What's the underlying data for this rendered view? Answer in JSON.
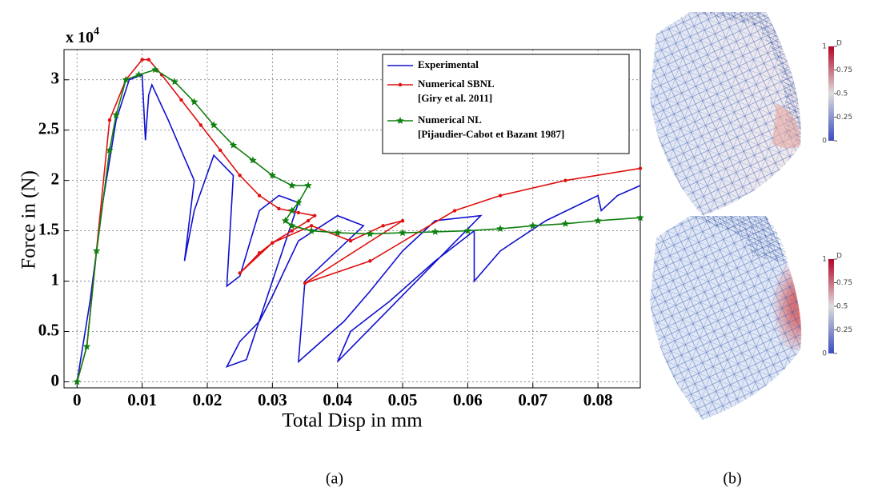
{
  "chart_data": {
    "type": "line",
    "y_scale_label": {
      "base": "x 10",
      "exponent": "4"
    },
    "x_label": "Total Disp in mm",
    "y_label": "Force in (N)",
    "xlim": [
      -0.002,
      0.0865
    ],
    "ylim": [
      -0.06,
      3.3
    ],
    "xticks": [
      0,
      0.01,
      0.02,
      0.03,
      0.04,
      0.05,
      0.06,
      0.07,
      0.08
    ],
    "yticks": [
      0,
      0.5,
      1,
      1.5,
      2,
      2.5,
      3
    ],
    "grid": true,
    "legend": "upper right",
    "series": [
      {
        "name": "Experimental",
        "color": "#1010d0",
        "marker": "none",
        "x": [
          0,
          0.002,
          0.004,
          0.006,
          0.008,
          0.01,
          0.0105,
          0.011,
          0.0115,
          0.014,
          0.016,
          0.018,
          0.0165,
          0.018,
          0.021,
          0.024,
          0.023,
          0.025,
          0.028,
          0.031,
          0.034,
          0.026,
          0.023,
          0.025,
          0.028,
          0.03,
          0.034,
          0.04,
          0.044,
          0.035,
          0.034,
          0.041,
          0.045,
          0.05,
          0.055,
          0.062,
          0.04,
          0.042,
          0.048,
          0.055,
          0.061,
          0.061,
          0.065,
          0.072,
          0.08,
          0.0805,
          0.083,
          0.0865
        ],
        "values": [
          0,
          0.8,
          1.8,
          2.6,
          3.0,
          3.05,
          2.4,
          2.85,
          2.95,
          2.6,
          2.3,
          2.0,
          1.2,
          1.7,
          2.25,
          2.05,
          0.95,
          1.05,
          1.7,
          1.85,
          1.78,
          0.22,
          0.15,
          0.4,
          0.6,
          0.85,
          1.4,
          1.65,
          1.55,
          1.0,
          0.2,
          0.6,
          0.9,
          1.3,
          1.6,
          1.65,
          0.2,
          0.5,
          0.8,
          1.2,
          1.5,
          1.0,
          1.3,
          1.6,
          1.85,
          1.7,
          1.85,
          1.95
        ]
      },
      {
        "name": "Numerical SBNL",
        "reference": "[Giry et al. 2011]",
        "color": "#e01010",
        "marker": "dot",
        "x": [
          0,
          0.0015,
          0.005,
          0.0075,
          0.01,
          0.011,
          0.013,
          0.016,
          0.019,
          0.022,
          0.025,
          0.028,
          0.031,
          0.034,
          0.0365,
          0.0355,
          0.033,
          0.03,
          0.028,
          0.025,
          0.03,
          0.036,
          0.042,
          0.047,
          0.05,
          0.035,
          0.045,
          0.058,
          0.065,
          0.075,
          0.0865
        ],
        "values": [
          0,
          0.35,
          2.6,
          3.0,
          3.2,
          3.2,
          3.05,
          2.8,
          2.55,
          2.3,
          2.05,
          1.85,
          1.72,
          1.68,
          1.65,
          1.6,
          1.5,
          1.38,
          1.28,
          1.08,
          1.38,
          1.55,
          1.4,
          1.55,
          1.6,
          0.98,
          1.2,
          1.7,
          1.85,
          2.0,
          2.12
        ]
      },
      {
        "name": "Numerical NL",
        "reference": "[Pijaudier-Cabot et Bazant 1987]",
        "color": "#108010",
        "marker": "star",
        "x": [
          0,
          0.0015,
          0.003,
          0.005,
          0.006,
          0.0075,
          0.0095,
          0.012,
          0.015,
          0.018,
          0.021,
          0.024,
          0.027,
          0.03,
          0.033,
          0.0355,
          0.034,
          0.033,
          0.032,
          0.033,
          0.036,
          0.04,
          0.045,
          0.05,
          0.055,
          0.06,
          0.065,
          0.07,
          0.075,
          0.08,
          0.0865
        ],
        "values": [
          0,
          0.35,
          1.3,
          2.3,
          2.65,
          3.0,
          3.05,
          3.1,
          2.98,
          2.78,
          2.55,
          2.35,
          2.2,
          2.05,
          1.95,
          1.95,
          1.78,
          1.7,
          1.6,
          1.55,
          1.5,
          1.48,
          1.47,
          1.48,
          1.49,
          1.5,
          1.52,
          1.55,
          1.57,
          1.6,
          1.63
        ]
      }
    ]
  },
  "colorbars": [
    {
      "title": "D",
      "ticks": [
        1,
        0.75,
        0.5,
        0.25,
        0
      ]
    },
    {
      "title": "D",
      "ticks": [
        1,
        0.75,
        0.5,
        0.25,
        0
      ]
    }
  ],
  "captions": [
    "(a)",
    "(b)"
  ]
}
